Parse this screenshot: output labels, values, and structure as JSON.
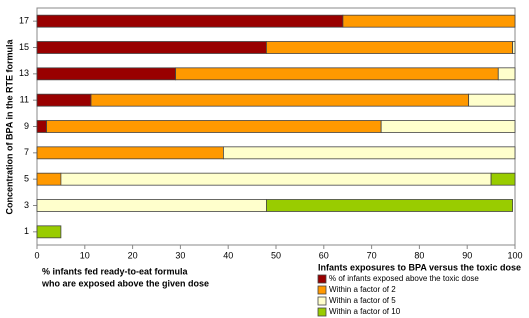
{
  "chart_data": {
    "type": "stacked_barh",
    "ylabel": "Concentration of BPA in the RTE formula",
    "xlabel": [
      "% infants fed ready-to-eat formula",
      "who are exposed above the given dose"
    ],
    "legend_title": "Infants exposures to BPA versus the toxic dose",
    "legend_position": "bottom-right",
    "categories": [
      "1",
      "3",
      "5",
      "7",
      "9",
      "11",
      "13",
      "15",
      "17"
    ],
    "series": [
      {
        "name": "% of infants exposed above the toxic dose",
        "color": "#990000",
        "values": [
          0,
          0,
          0,
          0,
          2,
          11.3,
          29,
          48,
          64
        ]
      },
      {
        "name": "Within a factor of 2",
        "color": "#ff9900",
        "values": [
          0,
          0,
          5,
          39,
          70,
          79,
          67.5,
          51.5,
          36
        ]
      },
      {
        "name": "Within a factor of 5",
        "color": "#ffffcc",
        "values": [
          0,
          48,
          90,
          61,
          28,
          9.7,
          3.5,
          0.5,
          0
        ]
      },
      {
        "name": "Within a factor of 10",
        "color": "#99cc00",
        "values": [
          5,
          51.5,
          5,
          0,
          0,
          0,
          0,
          0,
          0
        ]
      }
    ],
    "xlim": [
      0,
      100
    ],
    "xticks": [
      0,
      10,
      20,
      30,
      40,
      50,
      60,
      70,
      80,
      90,
      100
    ]
  }
}
